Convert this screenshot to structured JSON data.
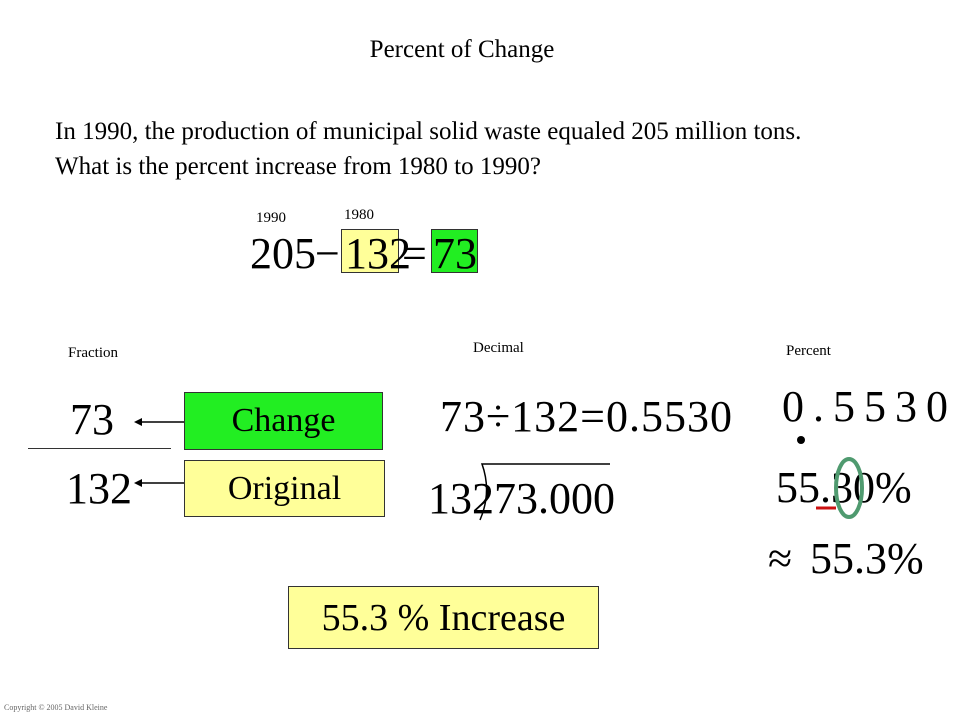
{
  "title": "Percent of Change",
  "problem": "In 1990, the production of municipal solid waste equaled 205 million tons. What is the percent increase from 1980 to 1990?",
  "equation": {
    "label_1990": "1990",
    "label_1980": "1980",
    "value_1990": "205",
    "minus": "−",
    "value_1980": "132",
    "equals": "=",
    "difference": "73",
    "highlight_1980": "#ffff99",
    "highlight_difference": "#22ee22"
  },
  "columns": {
    "fraction": "Fraction",
    "decimal": "Decimal",
    "percent": "Percent"
  },
  "fraction": {
    "numerator": "73",
    "denominator": "132",
    "numerator_label": "Change",
    "denominator_label": "Original"
  },
  "decimal": {
    "division": "73÷132=0.5530",
    "divisor": "132",
    "dividend": "73.000"
  },
  "percent": {
    "decimal_digits": "0.5530",
    "percent_value": "55.30%",
    "approx_symbol": "≈",
    "rounded": "55.3%"
  },
  "result": "55.3 % Increase",
  "copyright": "Copyright © 2005 David Kleine"
}
